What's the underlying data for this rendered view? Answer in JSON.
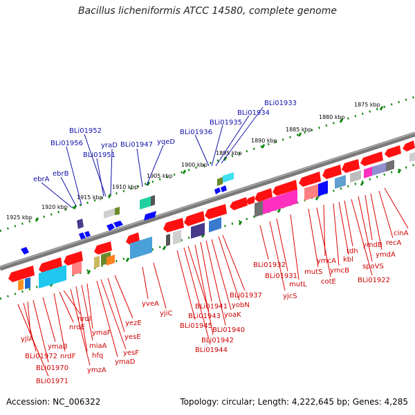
{
  "title": "Bacillus licheniformis ATCC 14580, complete genome",
  "footer": {
    "accession": "Accession: NC_006322",
    "topology": "Topology: circular; Length: 4,222,645 bp; Genes: 4,285"
  },
  "colors": {
    "backbone": "#808080",
    "tick": "#118811",
    "label_top": "#1010aa",
    "label_bottom": "#cc0000",
    "gene_red": "#ff1010",
    "gene_blue": "#0a0aff"
  },
  "kbp_labels": [
    "1875 kbp",
    "1880 kbp",
    "1885 kbp",
    "1890 kbp",
    "1895 kbp",
    "1900 kbp",
    "1905 kbp",
    "1910 kbp",
    "1915 kbp",
    "1920 kbp",
    "1925 kbp"
  ],
  "top_genes": [
    "BLi01933",
    "BLi01934",
    "BLi01935",
    "BLi01936",
    "yqeD",
    "BLi01947",
    "yraD",
    "BLi01951",
    "BLi01952",
    "BLi01956",
    "ebrB",
    "ebrA"
  ],
  "bottom_genes_right": [
    "cinA",
    "recA",
    "ymdA",
    "ymdB",
    "spoVS",
    "BLi01922",
    "tdh",
    "kbl",
    "ymcB",
    "ymcA",
    "cotE",
    "mutS",
    "mutL",
    "BLi01931",
    "BLi01932",
    "yjcS"
  ],
  "bottom_genes_mid": [
    "BLi01937",
    "yobN",
    "yoaK",
    "BLi01940",
    "BLi01941",
    "BLi01942",
    "BLi01943",
    "BLi01944",
    "BLi01945",
    "yjiC",
    "yveA"
  ],
  "bottom_genes_left": [
    "yezE",
    "yesE",
    "yesF",
    "ymaD",
    "ymaF",
    "miaA",
    "hfq",
    "ymzA",
    "nrdI",
    "nrdE",
    "nrdF",
    "ymaB",
    "yjlA",
    "BLi01972",
    "BLi01970",
    "BLi01971"
  ]
}
